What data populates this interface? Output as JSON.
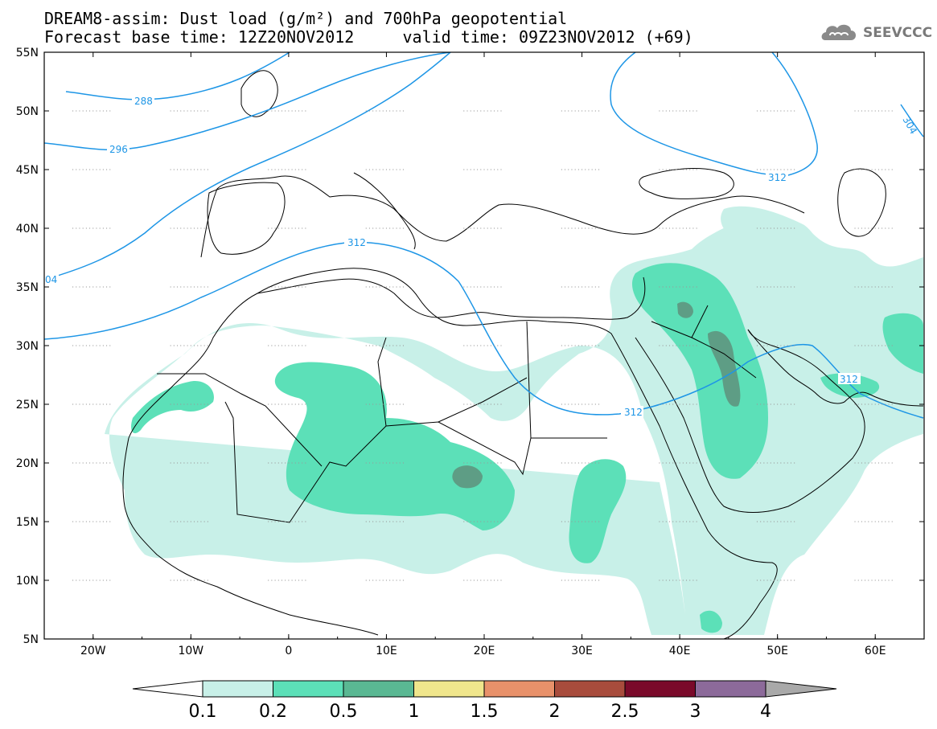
{
  "title": {
    "line1": "DREAM8-assim: Dust load (g/m²) and 700hPa geopotential",
    "line2": "Forecast base time: 12Z20NOV2012     valid time: 09Z23NOV2012 (+69)"
  },
  "logo": {
    "text": "SEEVCCC",
    "icon": "cloud-icon"
  },
  "map": {
    "lon_range": [
      -25,
      65
    ],
    "lat_range": [
      5,
      55
    ],
    "lat_labels": [
      "55N",
      "50N",
      "45N",
      "40N",
      "35N",
      "30N",
      "25N",
      "20N",
      "15N",
      "10N",
      "5N"
    ],
    "lon_labels": [
      "20W",
      "10W",
      "0",
      "10E",
      "20E",
      "30E",
      "40E",
      "50E",
      "60E"
    ],
    "contour_labels": [
      "288",
      "296",
      "312",
      "312",
      "312",
      "312",
      "304",
      "04"
    ]
  },
  "colorbar": {
    "labels": [
      "0.1",
      "0.2",
      "0.5",
      "1",
      "1.5",
      "2",
      "2.5",
      "3",
      "4"
    ],
    "colors": [
      "#c8f0e8",
      "#5ce0b8",
      "#5ab893",
      "#f0e68c",
      "#e8916a",
      "#a84c3c",
      "#7a0a2a",
      "#8c6a9a"
    ],
    "under_color": "#ffffff",
    "over_color": "#a9a9a9"
  },
  "colors": {
    "contour": "#1e96e6",
    "dust_light": "#c8f0e8",
    "dust_mid": "#5ce0b8",
    "dust_dark": "#5ab893",
    "dust_darker": "#5e8f7a"
  }
}
